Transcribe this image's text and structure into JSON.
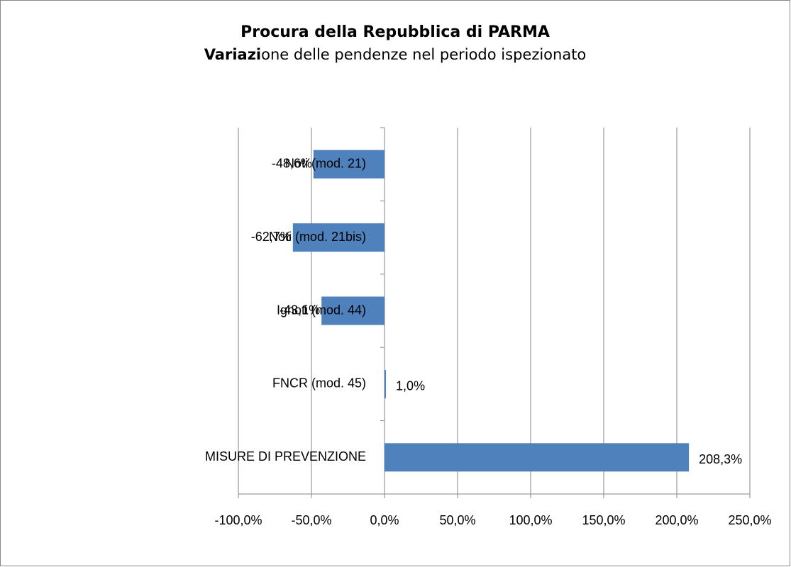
{
  "chart_data": {
    "type": "bar",
    "orientation": "horizontal",
    "title": "Procura della Repubblica di PARMA",
    "subtitle": [
      "Variazi",
      "one delle pendenze nel periodo ispezionato"
    ],
    "categories": [
      "Noti (mod. 21)",
      "Noti (mod. 21bis)",
      "Ignoti (mod. 44)",
      "FNCR (mod. 45)",
      "MISURE DI PREVENZIONE"
    ],
    "values": [
      -48.6,
      -62.7,
      -43.1,
      1.0,
      208.3
    ],
    "value_labels": [
      "-48,6%",
      "-62,7%",
      "-43,1%",
      "1,0%",
      "208,3%"
    ],
    "color": "#4f81bd",
    "xlim": [
      -100,
      250
    ],
    "xticks": [
      {
        "value": -100,
        "label": "-100,0%"
      },
      {
        "value": -50,
        "label": "-50,0%"
      },
      {
        "value": 0,
        "label": "0,0%"
      },
      {
        "value": 50,
        "label": "50,0%"
      },
      {
        "value": 100,
        "label": "100,0%"
      },
      {
        "value": 150,
        "label": "150,0%"
      },
      {
        "value": 200,
        "label": "200,0%"
      },
      {
        "value": 250,
        "label": "250,0%"
      }
    ],
    "grid": true
  }
}
